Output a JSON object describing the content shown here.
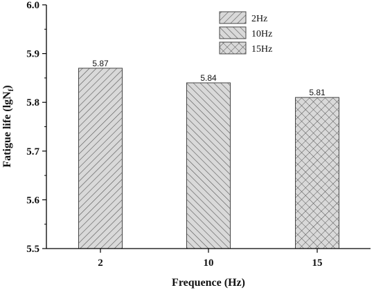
{
  "chart_data": {
    "type": "bar",
    "categories": [
      "2",
      "10",
      "15"
    ],
    "values": [
      5.87,
      5.84,
      5.81
    ],
    "value_labels": [
      "5.87",
      "5.84",
      "5.81"
    ],
    "series_names": [
      "2Hz",
      "10Hz",
      "15Hz"
    ],
    "patterns": [
      "diagonal-forward",
      "diagonal-backward",
      "crosshatch"
    ],
    "title": "",
    "xlabel": "Frequence (Hz)",
    "ylabel_main": "Fatigue life (lgN",
    "ylabel_sub": "f",
    "ylabel_close": ")",
    "ylim": [
      5.5,
      6.0
    ],
    "yticks": [
      5.5,
      5.6,
      5.7,
      5.8,
      5.9,
      6.0
    ],
    "ytick_labels": [
      "5.5",
      "5.6",
      "5.7",
      "5.8",
      "5.9",
      "6.0"
    ],
    "grid": false,
    "legend_position": "top-right",
    "colors": {
      "fill": "#d9d9d9",
      "hatch": "#555555",
      "axis": "#000000"
    }
  }
}
